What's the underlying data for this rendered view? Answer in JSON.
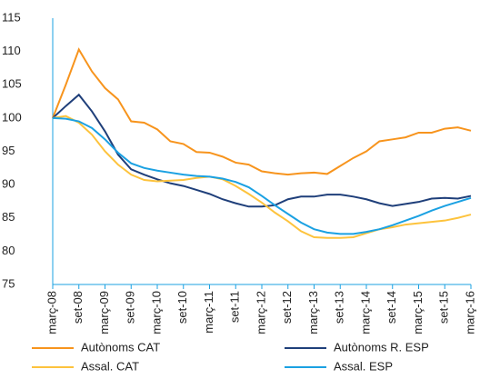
{
  "chart_data": {
    "type": "line",
    "categories": [
      "març-08",
      null,
      "set-08",
      null,
      "març-09",
      null,
      "set-09",
      null,
      "març-10",
      null,
      "set-10",
      null,
      "març-11",
      null,
      "set-11",
      null,
      "març-12",
      null,
      "set-12",
      null,
      "març-13",
      null,
      "set-13",
      null,
      "març-14",
      null,
      "set-14",
      null,
      "març-15",
      null,
      "set-15",
      null,
      "març-16"
    ],
    "series": [
      {
        "name": "Autònoms CAT",
        "color": "#f7941d",
        "values": [
          100,
          105,
          110.3,
          107,
          104.5,
          102.8,
          99.5,
          99.3,
          98.3,
          96.5,
          96.1,
          94.9,
          94.8,
          94.2,
          93.3,
          93,
          92,
          91.7,
          91.5,
          91.7,
          91.8,
          91.6,
          92.8,
          94,
          95,
          96.5,
          96.8,
          97.1,
          97.8,
          97.8,
          98.4,
          98.6,
          98.1
        ]
      },
      {
        "name": "Autònoms R. ESP",
        "color": "#1f3f7a",
        "values": [
          100,
          101.8,
          103.5,
          101,
          98,
          94.5,
          92.3,
          91.5,
          90.8,
          90.2,
          89.8,
          89.2,
          88.6,
          87.8,
          87.2,
          86.7,
          86.7,
          86.9,
          87.8,
          88.2,
          88.2,
          88.5,
          88.5,
          88.2,
          87.8,
          87.2,
          86.8,
          87.1,
          87.4,
          87.9,
          88,
          87.9,
          88.3
        ]
      },
      {
        "name": "Assal. CAT",
        "color": "#fdc33d",
        "values": [
          100,
          100.3,
          99.3,
          97.5,
          95,
          93,
          91.5,
          90.7,
          90.5,
          90.6,
          90.7,
          91,
          91.2,
          90.8,
          89.8,
          88.6,
          87.3,
          85.8,
          84.5,
          83,
          82.1,
          82,
          82,
          82.1,
          82.7,
          83.3,
          83.6,
          84,
          84.2,
          84.4,
          84.6,
          85,
          85.5
        ]
      },
      {
        "name": "Assal. ESP",
        "color": "#1ba1e2",
        "values": [
          100,
          99.9,
          99.5,
          98.5,
          96.8,
          94.8,
          93.2,
          92.5,
          92.1,
          91.8,
          91.5,
          91.3,
          91.2,
          90.9,
          90.4,
          89.6,
          88.3,
          86.9,
          85.6,
          84.3,
          83.3,
          82.8,
          82.6,
          82.6,
          82.9,
          83.3,
          83.9,
          84.6,
          85.3,
          86.1,
          86.8,
          87.4,
          88
        ]
      }
    ],
    "ylim": [
      75,
      115
    ],
    "yticks": [
      75,
      80,
      85,
      90,
      95,
      100,
      105,
      110,
      115
    ]
  }
}
